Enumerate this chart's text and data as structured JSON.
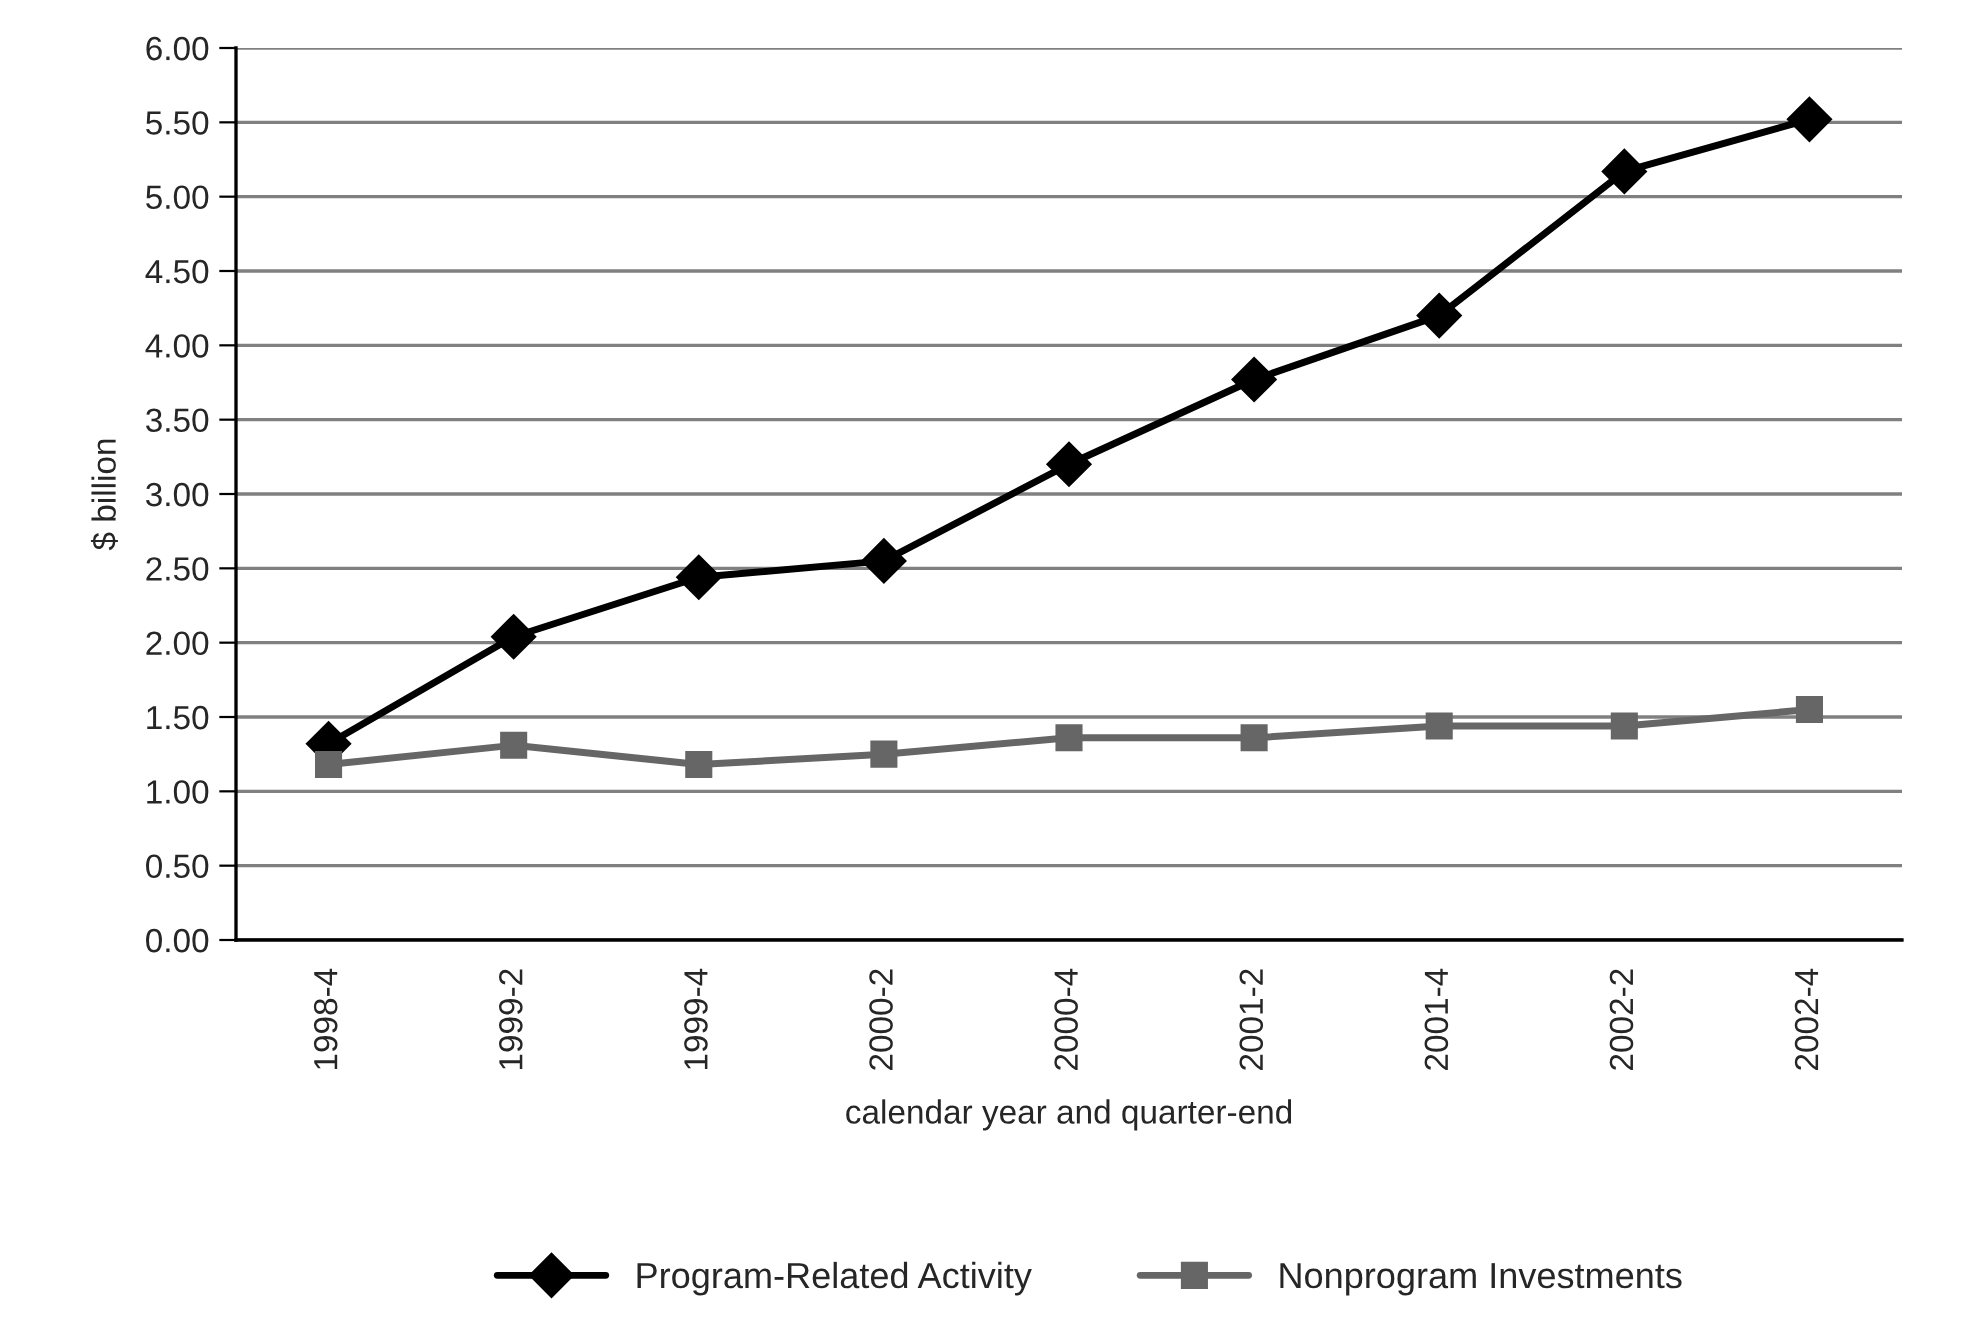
{
  "chart_data": {
    "type": "line",
    "ylabel": "$ billion",
    "xlabel": "calendar year and quarter-end",
    "categories": [
      "1998-4",
      "1999-2",
      "1999-4",
      "2000-2",
      "2000-4",
      "2001-2",
      "2001-4",
      "2002-2",
      "2002-4"
    ],
    "series": [
      {
        "name": "Program-Related Activity",
        "color": "#000000",
        "marker": "diamond",
        "values": [
          1.32,
          2.04,
          2.44,
          2.55,
          3.2,
          3.77,
          4.2,
          5.17,
          5.52
        ]
      },
      {
        "name": "Nonprogram Investments",
        "color": "#666666",
        "marker": "square",
        "values": [
          1.18,
          1.31,
          1.18,
          1.25,
          1.36,
          1.36,
          1.44,
          1.44,
          1.55
        ]
      }
    ],
    "ylim": [
      0,
      6
    ],
    "yticks": [
      {
        "value": 0,
        "label": "0.00"
      },
      {
        "value": 0.5,
        "label": "0.50"
      },
      {
        "value": 1,
        "label": "1.00"
      },
      {
        "value": 1.5,
        "label": "1.50"
      },
      {
        "value": 2,
        "label": "2.00"
      },
      {
        "value": 2.5,
        "label": "2.50"
      },
      {
        "value": 3,
        "label": "3.00"
      },
      {
        "value": 3.5,
        "label": "3.50"
      },
      {
        "value": 4,
        "label": "4.00"
      },
      {
        "value": 4.5,
        "label": "4.50"
      },
      {
        "value": 5,
        "label": "5.00"
      },
      {
        "value": 5.5,
        "label": "5.50"
      },
      {
        "value": 6,
        "label": "6.00"
      }
    ],
    "grid": "y",
    "legend": "bottom",
    "line_style": "solid"
  }
}
